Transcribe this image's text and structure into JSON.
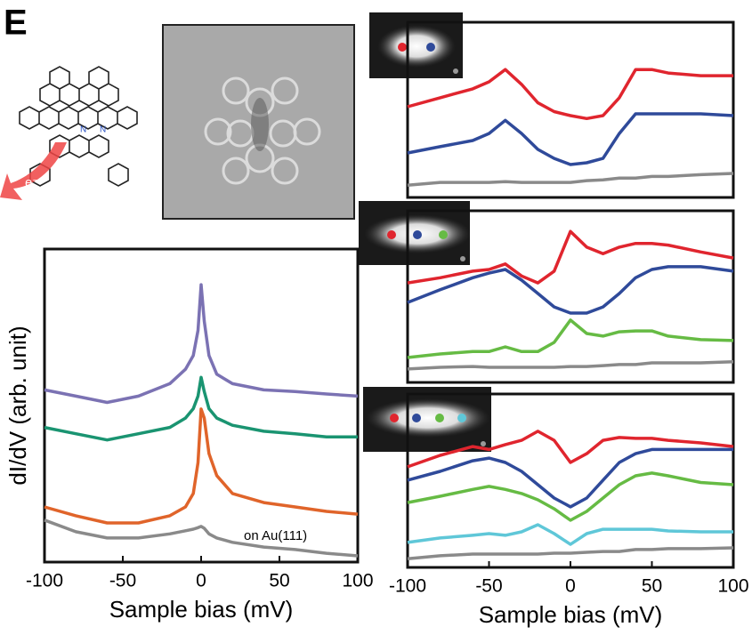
{
  "panel_label": "E",
  "molecule": {
    "atoms": [
      "N",
      "N"
    ],
    "electron": "e⁻"
  },
  "chart_data": [
    {
      "type": "line",
      "x_label": "Sample bias (mV)",
      "y_label": "dI/dV (arb. unit)",
      "annotation": "on Au(111)",
      "xlim": [
        -100,
        100
      ],
      "ylim": [
        0,
        100
      ],
      "xticks": [
        -100,
        -50,
        0,
        50,
        100
      ],
      "x": [
        -100,
        -80,
        -60,
        -40,
        -20,
        -10,
        -5,
        -2,
        0,
        2,
        5,
        10,
        20,
        40,
        60,
        80,
        100
      ],
      "series": [
        {
          "color": "#7b72b3",
          "values": [
            55,
            53,
            51,
            53,
            57,
            61.6,
            66,
            74,
            88.6,
            77,
            66,
            60,
            57,
            55,
            54.5,
            53.7,
            53
          ]
        },
        {
          "color": "#1a9471",
          "values": [
            43,
            41,
            39,
            41,
            43,
            46,
            49,
            53,
            59,
            54.5,
            49,
            46,
            43.7,
            41.8,
            41,
            40,
            40
          ]
        },
        {
          "color": "#e0642a",
          "values": [
            17.6,
            14.8,
            12.5,
            12.5,
            14.8,
            17.6,
            21.9,
            31.8,
            48.9,
            46,
            34.7,
            27.6,
            21.9,
            19,
            17.6,
            16.2,
            15.3
          ]
        },
        {
          "color": "#8a8a8a",
          "values": [
            13.4,
            9.7,
            7.7,
            7.7,
            9,
            10,
            10.5,
            11,
            11.4,
            10.8,
            9,
            7.7,
            6.3,
            4.8,
            4,
            2.8,
            2
          ]
        }
      ]
    },
    {
      "type": "line",
      "xlim": [
        -100,
        100
      ],
      "ylim": [
        0,
        100
      ],
      "x": [
        -100,
        -80,
        -60,
        -50,
        -40,
        -30,
        -20,
        -10,
        0,
        10,
        20,
        30,
        40,
        50,
        60,
        80,
        100
      ],
      "series": [
        {
          "color": "#e0252e",
          "values": [
            51.8,
            56.9,
            62,
            66,
            73,
            64.5,
            54,
            49,
            46.7,
            45,
            46.7,
            56.9,
            73,
            73,
            71,
            69.5,
            69.5
          ]
        },
        {
          "color": "#2f4a9a",
          "values": [
            25.4,
            29,
            32.5,
            36.5,
            44,
            36.5,
            27.4,
            22.3,
            18.8,
            19.8,
            22.3,
            36.5,
            47.7,
            47.7,
            47.7,
            47.7,
            46.7
          ]
        },
        {
          "color": "#8a8a8a",
          "values": [
            7,
            8.6,
            8.6,
            8.6,
            9,
            8.6,
            8.6,
            8.6,
            8.6,
            9.6,
            10,
            11,
            11,
            12,
            12,
            13,
            13.7
          ]
        }
      ]
    },
    {
      "type": "line",
      "xlim": [
        -100,
        100
      ],
      "ylim": [
        0,
        100
      ],
      "x": [
        -100,
        -80,
        -60,
        -50,
        -40,
        -30,
        -20,
        -10,
        0,
        10,
        20,
        30,
        40,
        50,
        60,
        80,
        100
      ],
      "series": [
        {
          "color": "#e0252e",
          "values": [
            58,
            61,
            64.8,
            65.8,
            69,
            62,
            58,
            64.8,
            88,
            78.8,
            75,
            78.8,
            81,
            81,
            80,
            76,
            72.5
          ]
        },
        {
          "color": "#2f4a9a",
          "values": [
            46.6,
            54,
            61,
            63.7,
            65.8,
            59.6,
            51.8,
            44,
            40.4,
            40.4,
            44,
            51.8,
            61,
            65.8,
            67.4,
            67.4,
            64.8
          ]
        },
        {
          "color": "#66bb44",
          "values": [
            14.5,
            16.6,
            18,
            18,
            20.7,
            18,
            18,
            23.3,
            36.3,
            28.5,
            27,
            29.5,
            30,
            30,
            27,
            24.9,
            24.4
          ]
        },
        {
          "color": "#8a8a8a",
          "values": [
            7.8,
            8.8,
            9.3,
            8.8,
            8.8,
            8.8,
            8.8,
            8.8,
            9.3,
            9.3,
            9.8,
            10.4,
            10.4,
            11.4,
            11.4,
            11.4,
            12
          ]
        }
      ]
    },
    {
      "type": "line",
      "x_label": "Sample bias (mV)",
      "xlim": [
        -100,
        100
      ],
      "ylim": [
        0,
        100
      ],
      "xticks": [
        -100,
        -50,
        0,
        50,
        100
      ],
      "x": [
        -100,
        -80,
        -60,
        -50,
        -40,
        -30,
        -20,
        -10,
        0,
        10,
        20,
        30,
        40,
        50,
        60,
        80,
        100
      ],
      "series": [
        {
          "color": "#e0252e",
          "values": [
            58,
            64.6,
            69.7,
            68,
            70.8,
            73.3,
            78.5,
            73.3,
            60.5,
            65.6,
            73.3,
            74.9,
            74.4,
            74.4,
            73.3,
            71.8,
            69.7
          ]
        },
        {
          "color": "#2f4a9a",
          "values": [
            50.3,
            55.4,
            61.5,
            63,
            60.5,
            55.4,
            47.7,
            40,
            34.9,
            40,
            50.3,
            60.5,
            65.6,
            68,
            68,
            68,
            68
          ]
        },
        {
          "color": "#66bb44",
          "values": [
            37.4,
            41,
            45,
            46.7,
            45,
            42.6,
            39,
            33.8,
            27.2,
            32.3,
            40,
            47.7,
            52.8,
            54.4,
            52.8,
            49,
            47.7
          ]
        },
        {
          "color": "#5fc7d8",
          "values": [
            14.4,
            17,
            18.5,
            19.5,
            18.5,
            20.5,
            24.6,
            19.5,
            13.3,
            19.5,
            22,
            22,
            22,
            22,
            21,
            20.5,
            20.5
          ]
        },
        {
          "color": "#8a8a8a",
          "values": [
            5,
            6.7,
            7.7,
            7.7,
            7.7,
            7.7,
            7.7,
            8.2,
            8.2,
            8.7,
            9.2,
            9.2,
            10.3,
            10.3,
            10.8,
            10.8,
            11.3
          ]
        }
      ]
    }
  ]
}
